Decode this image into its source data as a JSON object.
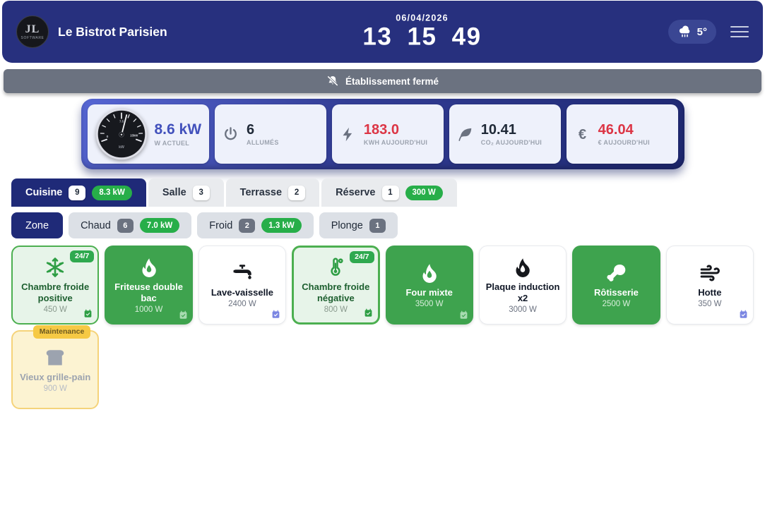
{
  "colors": {
    "header_navy": "#27307E",
    "active_navy": "#1F2A78",
    "device_green": "#3EA34E",
    "pill_green": "#27AE49",
    "alert_red": "#DC3545",
    "gauge_value_indigo": "#4251BC",
    "banner_gray": "#6B7280",
    "maintenance_yellow": "#F6C944"
  },
  "header": {
    "logo": {
      "monogram": "JL",
      "subtext": "SOFTWARE"
    },
    "title": "Le Bistrot Parisien",
    "date": "06/04/2026",
    "clock": "13 15 49",
    "weather_temp": "5°"
  },
  "banner": {
    "label": "Établissement fermé"
  },
  "stats": {
    "cards": [
      {
        "id": "gauge",
        "icon": "gauge",
        "value": "8.6 kW",
        "label": "W ACTUEL",
        "alert": false
      },
      {
        "id": "on-count",
        "icon": "power",
        "value": "6",
        "label": "ALLUMÉS",
        "alert": false
      },
      {
        "id": "kwh",
        "icon": "bolt",
        "value": "183.0",
        "label": "KWH AUJOURD'HUI",
        "alert": true
      },
      {
        "id": "co2",
        "icon": "leaf",
        "value": "10.41",
        "label": "CO₂ AUJOURD'HUI",
        "alert": false
      },
      {
        "id": "euro",
        "icon": "euro",
        "value": "46.04",
        "label": "€ AUJOURD'HUI",
        "alert": true
      }
    ],
    "gauge_labels": {
      "min": "0",
      "mid": "7.5",
      "max": "15kW",
      "unit": "kW"
    }
  },
  "tabs": [
    {
      "label": "Cuisine",
      "count": "9",
      "power": "8.3 kW",
      "active": true
    },
    {
      "label": "Salle",
      "count": "3",
      "power": null,
      "active": false
    },
    {
      "label": "Terrasse",
      "count": "2",
      "power": null,
      "active": false
    },
    {
      "label": "Réserve",
      "count": "1",
      "power": "300 W",
      "active": false
    }
  ],
  "filters": [
    {
      "label": "Zone",
      "count": null,
      "power": null,
      "active": true
    },
    {
      "label": "Chaud",
      "count": "6",
      "power": "7.0 kW",
      "active": false
    },
    {
      "label": "Froid",
      "count": "2",
      "power": "1.3 kW",
      "active": false
    },
    {
      "label": "Plonge",
      "count": "1",
      "power": null,
      "active": false
    }
  ],
  "devices": [
    {
      "name": "Chambre froide positive",
      "power": "450 W",
      "icon": "snowflake",
      "state": "always",
      "badge": "24/7",
      "schedule": true,
      "thick": false
    },
    {
      "name": "Friteuse double bac",
      "power": "1000 W",
      "icon": "flame",
      "state": "on",
      "badge": null,
      "schedule": true,
      "thick": false
    },
    {
      "name": "Lave-vaisselle",
      "power": "2400 W",
      "icon": "faucet",
      "state": "off",
      "badge": null,
      "schedule": true,
      "thick": false
    },
    {
      "name": "Chambre froide négative",
      "power": "800 W",
      "icon": "thermometer",
      "state": "always",
      "badge": "24/7",
      "schedule": true,
      "thick": true
    },
    {
      "name": "Four mixte",
      "power": "3500 W",
      "icon": "flame",
      "state": "on",
      "badge": null,
      "schedule": true,
      "thick": false
    },
    {
      "name": "Plaque induction x2",
      "power": "3000 W",
      "icon": "flame",
      "state": "off",
      "badge": null,
      "schedule": false,
      "thick": false
    },
    {
      "name": "Rôtisserie",
      "power": "2500 W",
      "icon": "drumstick",
      "state": "on",
      "badge": null,
      "schedule": false,
      "thick": false
    },
    {
      "name": "Hotte",
      "power": "350 W",
      "icon": "wind",
      "state": "off",
      "badge": null,
      "schedule": true,
      "thick": false
    },
    {
      "name": "Vieux grille-pain",
      "power": "900 W",
      "icon": "toast",
      "state": "maintenance",
      "badge": "Maintenance",
      "schedule": false,
      "thick": false
    }
  ]
}
